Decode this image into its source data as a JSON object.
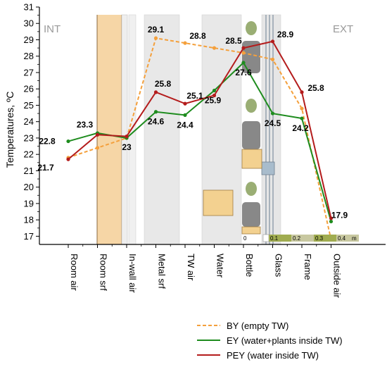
{
  "chart_data": {
    "type": "line",
    "ylabel": "Temperatures, ºC",
    "ylim": [
      16.5,
      31
    ],
    "yticks": [
      17,
      18,
      19,
      20,
      21,
      22,
      23,
      24,
      25,
      26,
      27,
      28,
      29,
      30,
      31
    ],
    "categories": [
      "Room air",
      "Room srf",
      "In-wall air",
      "Metal srf",
      "TW air",
      "Water",
      "Bottle",
      "Glass",
      "Frame",
      "Outside air"
    ],
    "corner_labels": {
      "left": "INT",
      "right": "EXT"
    },
    "series": [
      {
        "name": "BY (empty TW)",
        "color": "#f4a03c",
        "style": "dashed",
        "values": [
          21.8,
          22.4,
          23.0,
          29.1,
          28.8,
          28.5,
          28.2,
          27.8,
          24.8,
          16.8
        ],
        "labels": [
          "",
          "",
          "",
          "29.1",
          "28.8",
          "",
          "",
          "",
          "",
          ""
        ]
      },
      {
        "name": "EY (water+plants inside TW)",
        "color": "#1e8c1e",
        "style": "solid",
        "values": [
          22.8,
          23.3,
          23.0,
          24.6,
          24.4,
          25.9,
          27.6,
          24.5,
          24.2,
          17.9
        ],
        "labels": [
          "22.8",
          "23.3",
          "23",
          "24.6",
          "24.4",
          "25.9",
          "27.6",
          "24.5",
          "24.2",
          "17.9"
        ]
      },
      {
        "name": "PEY (water inside TW)",
        "color": "#b41c1c",
        "style": "solid",
        "values": [
          21.7,
          23.2,
          23.1,
          25.8,
          25.1,
          25.6,
          28.5,
          28.9,
          25.8,
          18.1
        ],
        "labels": [
          "21.7",
          "",
          "",
          "25.8",
          "25.1",
          "",
          "28.5",
          "28.9",
          "25.8",
          ""
        ]
      }
    ],
    "scale_bar": {
      "labels": [
        "0",
        "0.1",
        "0.2",
        "0.3",
        "0.4"
      ],
      "unit": "m"
    }
  }
}
